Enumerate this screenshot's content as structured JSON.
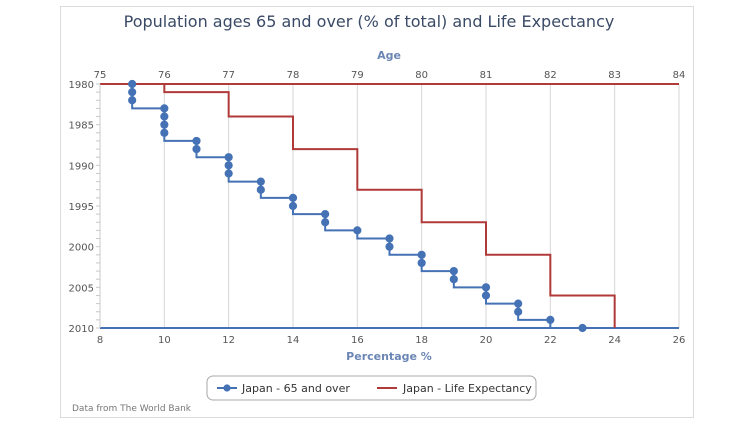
{
  "chart_data": {
    "type": "line",
    "title": "Population ages 65 and over (% of total) and Life Expectancy",
    "x_bottom": {
      "label": "Percentage %",
      "range": [
        8,
        26
      ],
      "ticks": [
        "8",
        "10",
        "12",
        "14",
        "16",
        "18",
        "20",
        "22",
        "24",
        "26"
      ]
    },
    "x_top": {
      "label": "Age",
      "range": [
        75,
        84
      ],
      "ticks": [
        "75",
        "76",
        "77",
        "78",
        "79",
        "80",
        "81",
        "82",
        "83",
        "84"
      ]
    },
    "y": {
      "range": [
        1980,
        2010
      ],
      "reversed": true,
      "ticks": [
        "1980",
        "1985",
        "1990",
        "1995",
        "2000",
        "2005",
        "2010"
      ]
    },
    "grid": "vertical",
    "legend_placement": "bottom-center",
    "series": [
      {
        "name": "Japan - 65 and over",
        "axis": "bottom",
        "step": true,
        "markers": true,
        "color": "#4472b4",
        "x": [
          9,
          9,
          9,
          10,
          10,
          10,
          10,
          11,
          11,
          12,
          12,
          12,
          13,
          13,
          14,
          14,
          15,
          15,
          16,
          17,
          17,
          18,
          18,
          19,
          19,
          20,
          20,
          21,
          21,
          22,
          23
        ],
        "y": [
          1980,
          1981,
          1982,
          1983,
          1984,
          1985,
          1986,
          1987,
          1988,
          1989,
          1990,
          1991,
          1992,
          1993,
          1994,
          1995,
          1996,
          1997,
          1998,
          1999,
          2000,
          2001,
          2002,
          2003,
          2004,
          2005,
          2006,
          2007,
          2008,
          2009,
          2010
        ]
      },
      {
        "name": "Japan - Life Expectancy",
        "axis": "top",
        "step": true,
        "markers": false,
        "color": "#b03a3a",
        "x": [
          76,
          76,
          77,
          77,
          78,
          78,
          79,
          79,
          80,
          80,
          81,
          81,
          82,
          82,
          83,
          83
        ],
        "y": [
          1980,
          1981,
          1981,
          1984,
          1984,
          1988,
          1988,
          1993,
          1993,
          1997,
          1997,
          2001,
          2001,
          2006,
          2006,
          2010
        ]
      }
    ]
  },
  "credits": "Data from The World Bank"
}
